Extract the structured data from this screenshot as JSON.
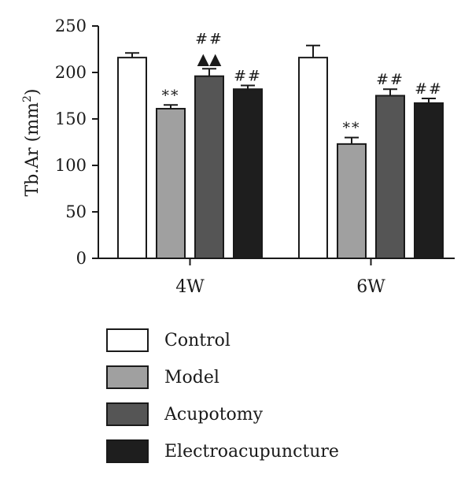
{
  "chart_data": {
    "type": "bar",
    "ylabel": "Tb.Ar (mm²)",
    "ylabel_base": "Tb.Ar (mm",
    "ylabel_sup": "2",
    "ylabel_close": ")",
    "ylim": [
      0,
      250
    ],
    "yticks": [
      0,
      50,
      100,
      150,
      200,
      250
    ],
    "ytick_labels": [
      "0",
      "50",
      "100",
      "150",
      "200",
      "250"
    ],
    "categories": [
      "4W",
      "6W"
    ],
    "series": [
      {
        "name": "Control",
        "color": "#ffffff",
        "values": [
          216,
          216
        ],
        "errors": [
          5,
          13
        ]
      },
      {
        "name": "Model",
        "color": "#a0a0a0",
        "values": [
          161,
          123
        ],
        "errors": [
          4,
          7
        ]
      },
      {
        "name": "Acupotomy",
        "color": "#555555",
        "values": [
          196,
          175
        ],
        "errors": [
          8,
          7
        ]
      },
      {
        "name": "Electroacupuncture",
        "color": "#1e1e1e",
        "values": [
          182,
          167
        ],
        "errors": [
          4,
          5
        ]
      }
    ],
    "annotations": [
      {
        "category": 0,
        "series": 1,
        "lines": [
          "**"
        ]
      },
      {
        "category": 0,
        "series": 2,
        "lines": [
          "##",
          "▲▲"
        ]
      },
      {
        "category": 0,
        "series": 3,
        "lines": [
          "##"
        ]
      },
      {
        "category": 1,
        "series": 1,
        "lines": [
          "**"
        ]
      },
      {
        "category": 1,
        "series": 2,
        "lines": [
          "##"
        ]
      },
      {
        "category": 1,
        "series": 3,
        "lines": [
          "##"
        ]
      }
    ],
    "legend_position": "bottom"
  }
}
